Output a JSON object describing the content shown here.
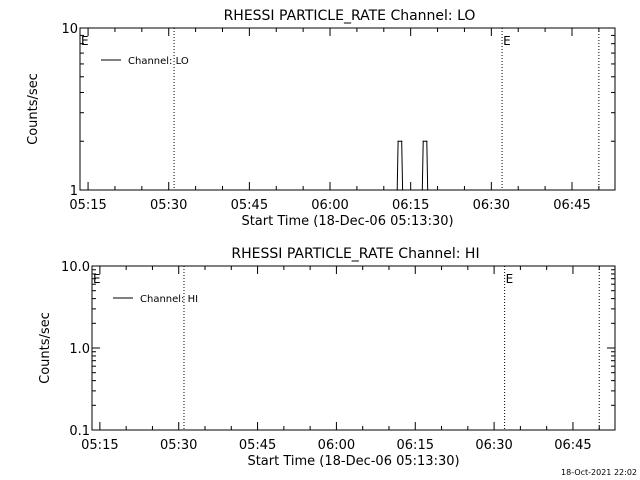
{
  "chart_data": [
    {
      "type": "line",
      "title": "RHESSI PARTICLE_RATE Channel: LO",
      "xlabel": "Start Time (18-Dec-06 05:13:30)",
      "ylabel": "Counts/sec",
      "y_scale": "log",
      "ylim": [
        1,
        10
      ],
      "y_ticks": [
        {
          "value": 1,
          "label": "1"
        },
        {
          "value": 10,
          "label": "10"
        }
      ],
      "xlim": [
        "05:13:30",
        "06:53:00"
      ],
      "x_ticks": [
        "05:15",
        "05:30",
        "05:45",
        "06:00",
        "06:15",
        "06:30",
        "06:45"
      ],
      "legend": {
        "position": "top-left",
        "entries": [
          "Channel: LO"
        ]
      },
      "markers": [
        {
          "time": "05:13:30",
          "label": "E"
        },
        {
          "time": "05:31:00",
          "label": ""
        },
        {
          "time": "06:32:00",
          "label": "E"
        },
        {
          "time": "06:50:00",
          "label": ""
        }
      ],
      "series": [
        {
          "name": "Channel: LO",
          "points": [
            {
              "x": "06:12:30",
              "y": 1
            },
            {
              "x": "06:12:40",
              "y": 2
            },
            {
              "x": "06:13:20",
              "y": 2
            },
            {
              "x": "06:13:30",
              "y": 1
            },
            {
              "x": "06:17:10",
              "y": 1
            },
            {
              "x": "06:17:20",
              "y": 2
            },
            {
              "x": "06:18:00",
              "y": 2
            },
            {
              "x": "06:18:10",
              "y": 1
            }
          ]
        }
      ]
    },
    {
      "type": "line",
      "title": "RHESSI PARTICLE_RATE Channel: HI",
      "xlabel": "Start Time (18-Dec-06 05:13:30)",
      "ylabel": "Counts/sec",
      "y_scale": "log",
      "ylim": [
        0.1,
        10
      ],
      "y_ticks": [
        {
          "value": 0.1,
          "label": "0.1"
        },
        {
          "value": 1,
          "label": "1.0"
        },
        {
          "value": 10,
          "label": "10.0"
        }
      ],
      "xlim": [
        "05:13:30",
        "06:53:00"
      ],
      "x_ticks": [
        "05:15",
        "05:30",
        "05:45",
        "06:00",
        "06:15",
        "06:30",
        "06:45"
      ],
      "legend": {
        "position": "top-left",
        "entries": [
          "Channel: HI"
        ]
      },
      "markers": [
        {
          "time": "05:13:30",
          "label": "E"
        },
        {
          "time": "05:31:00",
          "label": ""
        },
        {
          "time": "06:32:00",
          "label": "E"
        },
        {
          "time": "06:50:00",
          "label": ""
        }
      ],
      "series": [
        {
          "name": "Channel: HI",
          "points": []
        }
      ]
    }
  ],
  "footer": {
    "timestamp": "18-Oct-2021 22:02"
  }
}
